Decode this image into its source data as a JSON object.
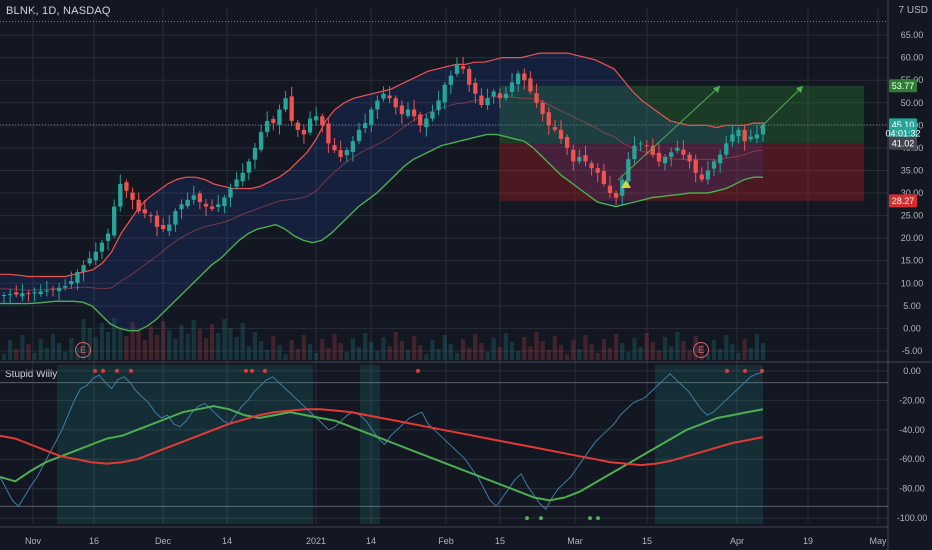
{
  "header": {
    "symbol": "BLNK, 1D, NASDAQ",
    "currency": "7 USD"
  },
  "indicator": {
    "title": "Stupid Willy"
  },
  "colors": {
    "background": "#131722",
    "up": "#26a69a",
    "down": "#ef5350",
    "upper_band": "#ef5350",
    "basis": "#ef5350",
    "lower_band": "#4caf50",
    "signal_fast": "#4caf50",
    "signal_slow": "#e53935",
    "oscillator": "#3d7ea6",
    "target_green": "#2e7d32",
    "stop_red": "#b71c1c"
  },
  "chart_data": [
    {
      "type": "candlestick",
      "title": "BLNK, 1D, NASDAQ",
      "x_axis": {
        "tick_labels": [
          "Nov",
          "16",
          "Dec",
          "14",
          "2021",
          "14",
          "Feb",
          "15",
          "Mar",
          "15",
          "Apr",
          "19",
          "May"
        ]
      },
      "y_axis": {
        "ylim": [
          -7,
          71
        ],
        "tick_labels": [
          "65.00",
          "60.00",
          "55.00",
          "50.00",
          "45.00",
          "40.00",
          "35.00",
          "30.00",
          "25.00",
          "20.00",
          "15.00",
          "10.00",
          "5.00",
          "0.00",
          "-5.00"
        ]
      },
      "price_tags": [
        {
          "label": "53.77",
          "value": 53.77,
          "color": "#2e7d32"
        },
        {
          "label": "45.10",
          "value": 45.1,
          "color": "#26a69a"
        },
        {
          "label": "04:01:32",
          "value": 43.2,
          "color": "#26a69a"
        },
        {
          "label": "41.02",
          "value": 41.02,
          "color": "#434651"
        },
        {
          "label": "28.27",
          "value": 28.27,
          "color": "#d32f2f"
        }
      ],
      "position_tool": {
        "entry": 41.02,
        "target": 53.77,
        "stop": 28.27
      },
      "earnings_markers": [
        "E",
        "E"
      ],
      "close_approx": [
        7.4,
        7.6,
        7.5,
        7.8,
        7.6,
        8.0,
        8.2,
        8.4,
        8.7,
        9.0,
        9.4,
        10.5,
        12.5,
        14.0,
        15.5,
        17.0,
        19.0,
        21.0,
        27.0,
        32.0,
        30.5,
        28.5,
        26.0,
        25.5,
        25.0,
        22.5,
        22.0,
        23.0,
        26.0,
        27.5,
        28.5,
        29.5,
        28.0,
        27.0,
        26.5,
        27.5,
        29.0,
        31.0,
        33.0,
        34.5,
        37.0,
        40.0,
        43.5,
        46.0,
        45.5,
        48.5,
        51.0,
        46.0,
        44.0,
        43.0,
        46.5,
        47.0,
        45.0,
        41.0,
        39.5,
        38.0,
        39.5,
        41.5,
        44.0,
        45.5,
        48.5,
        50.5,
        52.0,
        51.0,
        49.0,
        47.5,
        48.5,
        47.0,
        45.0,
        46.5,
        48.0,
        50.5,
        54.0,
        56.0,
        58.5,
        57.5,
        54.0,
        52.0,
        49.5,
        51.0,
        52.5,
        51.0,
        52.0,
        54.5,
        56.5,
        55.0,
        52.5,
        50.0,
        47.5,
        45.0,
        44.0,
        42.0,
        40.0,
        37.0,
        38.0,
        37.0,
        35.5,
        34.5,
        32.0,
        30.0,
        29.0,
        33.0,
        37.5,
        40.5,
        41.0,
        40.5,
        38.5,
        37.0,
        38.0,
        39.0,
        40.0,
        38.5,
        37.0,
        34.5,
        33.0,
        35.0,
        37.0,
        38.5,
        41.0,
        43.0,
        44.0,
        41.5,
        42.5,
        43.0,
        45.1
      ],
      "upper_band_approx": [
        12,
        12,
        11.8,
        11.5,
        11.5,
        11.5,
        11.5,
        11.5,
        12,
        12.5,
        13,
        14.5,
        17,
        21,
        24,
        27,
        29,
        30.5,
        32,
        33,
        33.5,
        33.5,
        33,
        32,
        31.5,
        31,
        31,
        31,
        31.5,
        32.5,
        33.5,
        35,
        37,
        39,
        42,
        46,
        48.5,
        50,
        51,
        51.5,
        52,
        52.5,
        53,
        54,
        55,
        56,
        57,
        57.5,
        58,
        58.5,
        58.5,
        59,
        59,
        59.5,
        60,
        60,
        60,
        60.5,
        61,
        61,
        61,
        61,
        60.5,
        60,
        59.5,
        58.5,
        57.5,
        55,
        52.5,
        50.5,
        49,
        47.5,
        46,
        45.5,
        45,
        45,
        45,
        44.5,
        45,
        45,
        45,
        45.5,
        45.5
      ],
      "lower_band_approx": [
        5.5,
        5.5,
        5.5,
        5.5,
        5.6,
        5.8,
        6,
        6,
        6,
        5.8,
        5,
        3,
        1,
        0,
        -0.5,
        -0.5,
        0.5,
        2,
        4,
        6,
        8,
        10,
        12,
        14,
        15.5,
        17.5,
        19.5,
        21,
        22,
        22.5,
        23,
        22,
        20.5,
        19.5,
        19,
        19.5,
        21,
        23,
        25,
        27,
        28.5,
        30,
        32,
        34,
        36,
        37.5,
        38.5,
        39.5,
        40.5,
        41,
        41.5,
        42,
        42.5,
        43,
        43,
        42.5,
        42,
        41.5,
        40,
        38,
        36,
        34,
        32.5,
        31,
        29.5,
        28,
        27.5,
        27,
        27.5,
        28,
        28.5,
        29,
        29.2,
        29.5,
        29.7,
        30,
        30,
        30,
        30.5,
        31,
        32,
        33,
        33.5,
        33.5
      ]
    },
    {
      "type": "line",
      "title": "Stupid Willy",
      "y_axis": {
        "ylim": [
          -104,
          4
        ],
        "tick_labels": [
          "0.00",
          "-20.00",
          "-40.00",
          "-60.00",
          "-80.00",
          "-100.00"
        ]
      },
      "series": [
        {
          "color": "#3d7ea6",
          "values": [
            -72,
            -80,
            -88,
            -92,
            -85,
            -78,
            -72,
            -64,
            -56,
            -48,
            -40,
            -30,
            -20,
            -12,
            -10,
            -5,
            -3,
            -8,
            -12,
            -6,
            -4,
            -8,
            -14,
            -18,
            -22,
            -28,
            -32,
            -30,
            -36,
            -38,
            -34,
            -28,
            -24,
            -22,
            -26,
            -30,
            -34,
            -36,
            -30,
            -24,
            -20,
            -14,
            -10,
            -6,
            -4,
            -8,
            -12,
            -16,
            -20,
            -24,
            -28,
            -32,
            -36,
            -40,
            -38,
            -34,
            -30,
            -28,
            -30,
            -34,
            -40,
            -46,
            -50,
            -44,
            -40,
            -36,
            -32,
            -30,
            -28,
            -36,
            -40,
            -44,
            -48,
            -52,
            -56,
            -60,
            -66,
            -72,
            -80,
            -88,
            -92,
            -86,
            -80,
            -74,
            -70,
            -78,
            -84,
            -90,
            -94,
            -86,
            -80,
            -76,
            -72,
            -66,
            -60,
            -54,
            -48,
            -44,
            -40,
            -36,
            -30,
            -26,
            -22,
            -20,
            -18,
            -14,
            -10,
            -6,
            -2,
            -6,
            -10,
            -14,
            -20,
            -26,
            -30,
            -28,
            -24,
            -20,
            -16,
            -12,
            -8,
            -4,
            -2,
            -1
          ]
        },
        {
          "color": "#4caf50",
          "values": [
            -72,
            -75,
            -68,
            -62,
            -58,
            -54,
            -50,
            -46,
            -44,
            -40,
            -36,
            -32,
            -28,
            -26,
            -24,
            -26,
            -30,
            -32,
            -30,
            -28,
            -30,
            -32,
            -34,
            -38,
            -42,
            -46,
            -50,
            -54,
            -58,
            -62,
            -66,
            -70,
            -74,
            -78,
            -82,
            -86,
            -88,
            -86,
            -82,
            -76,
            -70,
            -64,
            -58,
            -52,
            -46,
            -40,
            -36,
            -32,
            -30,
            -28,
            -26
          ]
        },
        {
          "color": "#e53935",
          "values": [
            -44,
            -46,
            -50,
            -54,
            -58,
            -60,
            -62,
            -63,
            -62,
            -60,
            -56,
            -52,
            -48,
            -44,
            -40,
            -36,
            -33,
            -30,
            -28,
            -27,
            -26,
            -26,
            -27,
            -28,
            -30,
            -32,
            -34,
            -36,
            -38,
            -40,
            -42,
            -44,
            -46,
            -48,
            -50,
            -52,
            -54,
            -56,
            -58,
            -60,
            -62,
            -63,
            -64,
            -63,
            -61,
            -58,
            -55,
            -52,
            -49,
            -47,
            -45
          ]
        }
      ]
    }
  ]
}
